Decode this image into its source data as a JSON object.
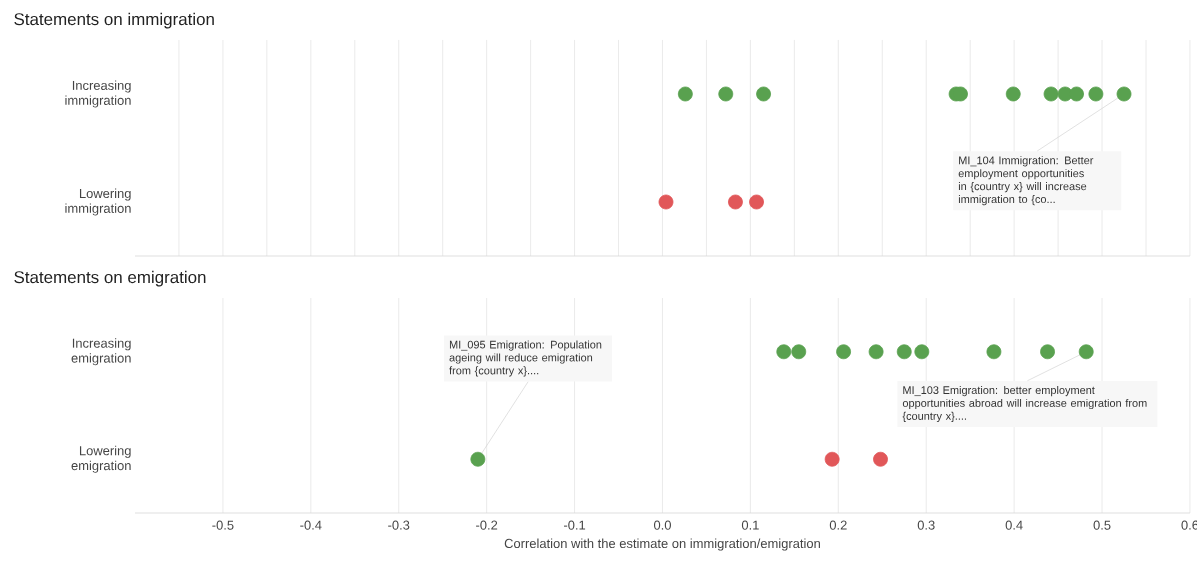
{
  "chart_data": [
    {
      "type": "scatter",
      "title": "Statements on immigration",
      "orientation": "horizontal",
      "categories": [
        "Increasing immigration",
        "Lowering immigration"
      ],
      "series": [
        {
          "color": "#59a14f",
          "x": [
            "Increasing immigration",
            "Increasing immigration",
            "Increasing immigration",
            "Increasing immigration",
            "Increasing immigration",
            "Increasing immigration",
            "Increasing immigration",
            "Increasing immigration",
            "Increasing immigration",
            "Increasing immigration",
            "Increasing immigration"
          ],
          "values": [
            0.026,
            0.072,
            0.115,
            0.334,
            0.339,
            0.399,
            0.442,
            0.458,
            0.471,
            0.493,
            0.525
          ]
        },
        {
          "color": "#e15759",
          "x": [
            "Lowering immigration",
            "Lowering immigration",
            "Lowering immigration"
          ],
          "values": [
            0.004,
            0.083,
            0.107
          ]
        }
      ],
      "xlim": [
        -0.6,
        0.6
      ],
      "xticks": [
        {
          "value": -0.55,
          "label": null
        },
        {
          "value": -0.5,
          "label": null
        },
        {
          "value": -0.45,
          "label": null
        },
        {
          "value": -0.4,
          "label": null
        },
        {
          "value": -0.35,
          "label": null
        },
        {
          "value": -0.3,
          "label": null
        },
        {
          "value": -0.25,
          "label": null
        },
        {
          "value": -0.2,
          "label": null
        },
        {
          "value": -0.15,
          "label": null
        },
        {
          "value": -0.1,
          "label": null
        },
        {
          "value": -0.05,
          "label": null
        },
        {
          "value": 0,
          "label": null
        },
        {
          "value": 0.05,
          "label": null
        },
        {
          "value": 0.1,
          "label": null
        },
        {
          "value": 0.15,
          "label": null
        },
        {
          "value": 0.2,
          "label": null
        },
        {
          "value": 0.25,
          "label": null
        },
        {
          "value": 0.3,
          "label": null
        },
        {
          "value": 0.35,
          "label": null
        },
        {
          "value": 0.4,
          "label": null
        },
        {
          "value": 0.45,
          "label": null
        },
        {
          "value": 0.5,
          "label": null
        },
        {
          "value": 0.55,
          "label": null
        },
        {
          "value": 0.6,
          "label": null
        }
      ],
      "grid": "x",
      "tick_labels": "y",
      "annotations": [
        {
          "text": "MI_104 Immigration: Better employment opportunities in {country x} will increase immigration to {co...",
          "x": 0.525,
          "y": "Increasing immigration"
        }
      ]
    },
    {
      "type": "scatter",
      "title": "Statements on emigration",
      "orientation": "horizontal",
      "categories": [
        "Increasing emigration",
        "Lowering emigration"
      ],
      "xlabel": "Correlation with the estimate on immigration/emigration",
      "series": [
        {
          "color": "#59a14f",
          "x": [
            "Increasing emigration",
            "Increasing emigration",
            "Increasing emigration",
            "Increasing emigration",
            "Increasing emigration",
            "Increasing emigration",
            "Increasing emigration",
            "Increasing emigration",
            "Increasing emigration",
            "Lowering emigration"
          ],
          "values": [
            0.138,
            0.155,
            0.206,
            0.243,
            0.275,
            0.295,
            0.377,
            0.438,
            0.482,
            -0.21
          ]
        },
        {
          "color": "#e15759",
          "x": [
            "Lowering emigration",
            "Lowering emigration"
          ],
          "values": [
            0.193,
            0.248
          ]
        }
      ],
      "xlim": [
        -0.6,
        0.6
      ],
      "xticks": [
        -0.5,
        -0.4,
        -0.3,
        -0.2,
        -0.1,
        {
          "value": 0,
          "label": "0.0"
        },
        0.1,
        0.2,
        0.3,
        0.4,
        0.5,
        0.6
      ],
      "grid": "x",
      "annotations": [
        {
          "text": "MI_095 Emigration: Population ageing will reduce emigration from {country x}....",
          "x": -0.21,
          "y": "Lowering emigration"
        },
        {
          "text": "MI_103 Emigration: better employment opportunities abroad will increase emigration from {country x}....",
          "x": 0.482,
          "y": "Increasing emigration"
        }
      ]
    }
  ]
}
